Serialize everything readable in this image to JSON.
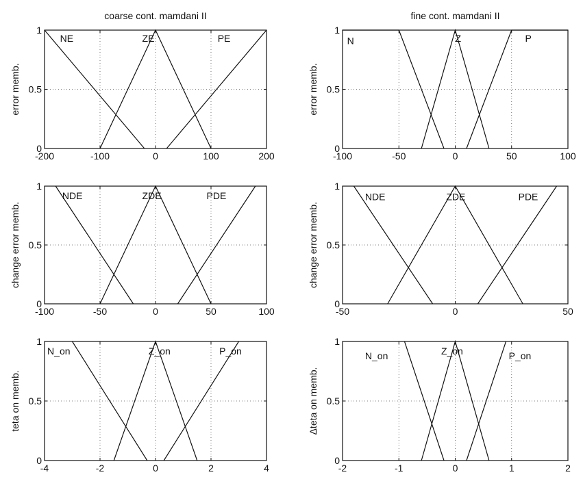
{
  "chart_data": [
    {
      "type": "line",
      "title": "coarse cont. mamdani II",
      "ylabel": "error memb.",
      "xlim": [
        -200,
        200
      ],
      "ylim": [
        0,
        1
      ],
      "xticks": [
        -200,
        -100,
        0,
        100,
        200
      ],
      "yticks": [
        0,
        0.5,
        1
      ],
      "grid": true,
      "series": [
        {
          "name": "NE",
          "x": [
            -200,
            -20
          ],
          "y": [
            1,
            0
          ]
        },
        {
          "name": "ZE",
          "x": [
            -100,
            0,
            100
          ],
          "y": [
            0,
            1,
            0
          ]
        },
        {
          "name": "PE",
          "x": [
            20,
            200
          ],
          "y": [
            0,
            1
          ]
        }
      ]
    },
    {
      "type": "line",
      "title": "fine cont. mamdani II",
      "ylabel": "error memb.",
      "xlim": [
        -100,
        100
      ],
      "ylim": [
        0,
        1
      ],
      "xticks": [
        -100,
        -50,
        0,
        50,
        100
      ],
      "yticks": [
        0,
        0.5,
        1
      ],
      "grid": true,
      "series": [
        {
          "name": "N",
          "x": [
            -100,
            -50,
            -10
          ],
          "y": [
            1,
            1,
            0
          ]
        },
        {
          "name": "Z",
          "x": [
            -30,
            0,
            30
          ],
          "y": [
            0,
            1,
            0
          ]
        },
        {
          "name": "P",
          "x": [
            10,
            50,
            100
          ],
          "y": [
            0,
            1,
            1
          ]
        }
      ]
    },
    {
      "type": "line",
      "title": "",
      "ylabel": "change error memb.",
      "xlim": [
        -100,
        100
      ],
      "ylim": [
        0,
        1
      ],
      "xticks": [
        -100,
        -50,
        0,
        50,
        100
      ],
      "yticks": [
        0,
        0.5,
        1
      ],
      "grid": true,
      "series": [
        {
          "name": "NDE",
          "x": [
            -90,
            -20
          ],
          "y": [
            1,
            0
          ]
        },
        {
          "name": "ZDE",
          "x": [
            -50,
            0,
            50
          ],
          "y": [
            0,
            1,
            0
          ]
        },
        {
          "name": "PDE",
          "x": [
            20,
            90
          ],
          "y": [
            0,
            1
          ]
        }
      ]
    },
    {
      "type": "line",
      "title": "",
      "ylabel": "change error memb.",
      "xlim": [
        -50,
        50
      ],
      "ylim": [
        0,
        1
      ],
      "xticks": [
        -50,
        0,
        50
      ],
      "yticks": [
        0,
        0.5,
        1
      ],
      "grid": true,
      "series": [
        {
          "name": "NDE",
          "x": [
            -45,
            -10
          ],
          "y": [
            1,
            0
          ]
        },
        {
          "name": "ZDE",
          "x": [
            -30,
            0,
            30
          ],
          "y": [
            0,
            1,
            0
          ]
        },
        {
          "name": "PDE",
          "x": [
            10,
            45
          ],
          "y": [
            0,
            1
          ]
        }
      ]
    },
    {
      "type": "line",
      "title": "",
      "ylabel": "teta on memb.",
      "xlim": [
        -4,
        4
      ],
      "ylim": [
        0,
        1
      ],
      "xticks": [
        -4,
        -2,
        0,
        2,
        4
      ],
      "yticks": [
        0,
        0.5,
        1
      ],
      "grid": true,
      "series": [
        {
          "name": "N_on",
          "x": [
            -3,
            -0.3
          ],
          "y": [
            1,
            0
          ]
        },
        {
          "name": "Z_on",
          "x": [
            -1.5,
            0,
            1.5
          ],
          "y": [
            0,
            1,
            0
          ]
        },
        {
          "name": "P_on",
          "x": [
            0.3,
            3
          ],
          "y": [
            0,
            1
          ]
        }
      ]
    },
    {
      "type": "line",
      "title": "",
      "ylabel": "Δteta on memb.",
      "xlim": [
        -2,
        2
      ],
      "ylim": [
        0,
        1
      ],
      "xticks": [
        -2,
        -1,
        0,
        1,
        2
      ],
      "yticks": [
        0,
        0.5,
        1
      ],
      "grid": true,
      "series": [
        {
          "name": "N_on",
          "x": [
            -0.9,
            -0.2
          ],
          "y": [
            1,
            0
          ]
        },
        {
          "name": "Z_on",
          "x": [
            -0.6,
            0,
            0.6
          ],
          "y": [
            0,
            1,
            0
          ]
        },
        {
          "name": "P_on",
          "x": [
            0.2,
            0.9
          ],
          "y": [
            0,
            1
          ]
        }
      ]
    }
  ]
}
